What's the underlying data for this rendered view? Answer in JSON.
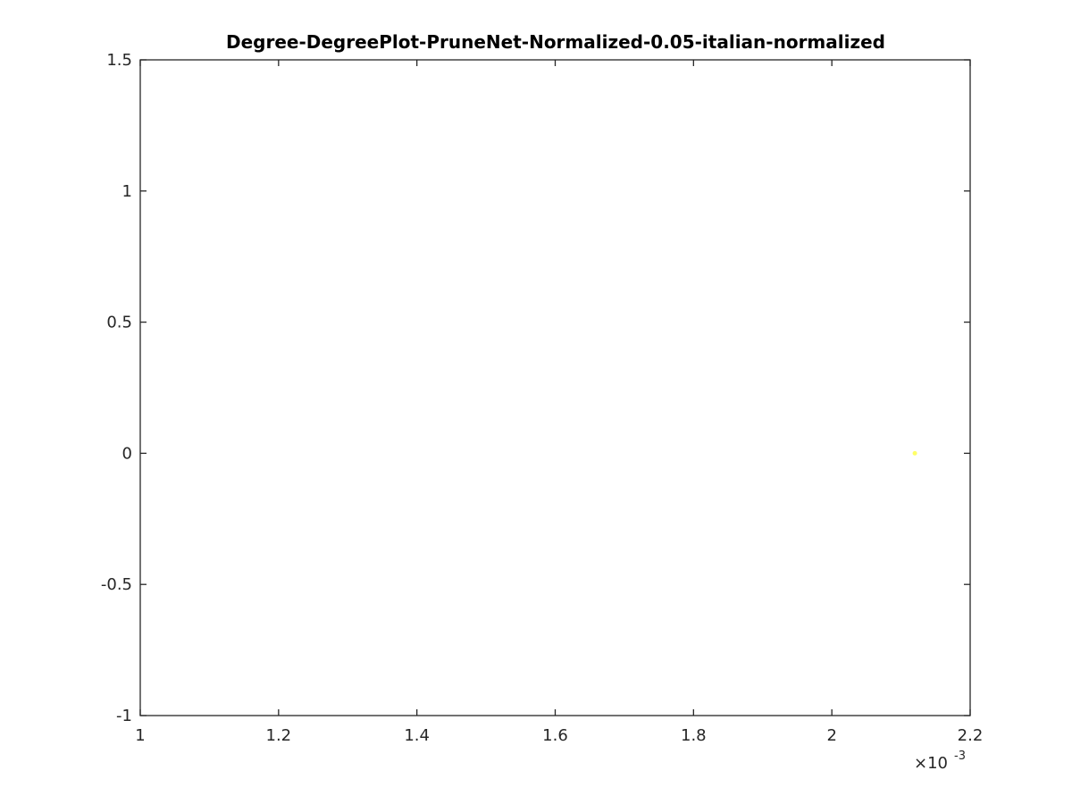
{
  "chart_data": {
    "type": "scatter",
    "title": "Degree-DegreePlot-PruneNet-Normalized-0.05-italian-normalized",
    "xlabel": "",
    "ylabel": "",
    "x_exponent_label": {
      "times": "×10",
      "power": "-3"
    },
    "xlim": [
      1,
      2.2
    ],
    "ylim": [
      -1,
      1.5
    ],
    "x_ticks": [
      1,
      1.2,
      1.4,
      1.6,
      1.8,
      2,
      2.2
    ],
    "x_tick_labels": [
      "1",
      "1.2",
      "1.4",
      "1.6",
      "1.8",
      "2",
      "2.2"
    ],
    "y_ticks": [
      -1,
      -0.5,
      0,
      0.5,
      1,
      1.5
    ],
    "y_tick_labels": [
      "-1",
      "-0.5",
      "0",
      "0.5",
      "1",
      "1.5"
    ],
    "grid": false,
    "box": true,
    "series": [
      {
        "points": [
          {
            "x": 2.12,
            "y": 0
          }
        ],
        "color": "#ffff66"
      }
    ]
  }
}
